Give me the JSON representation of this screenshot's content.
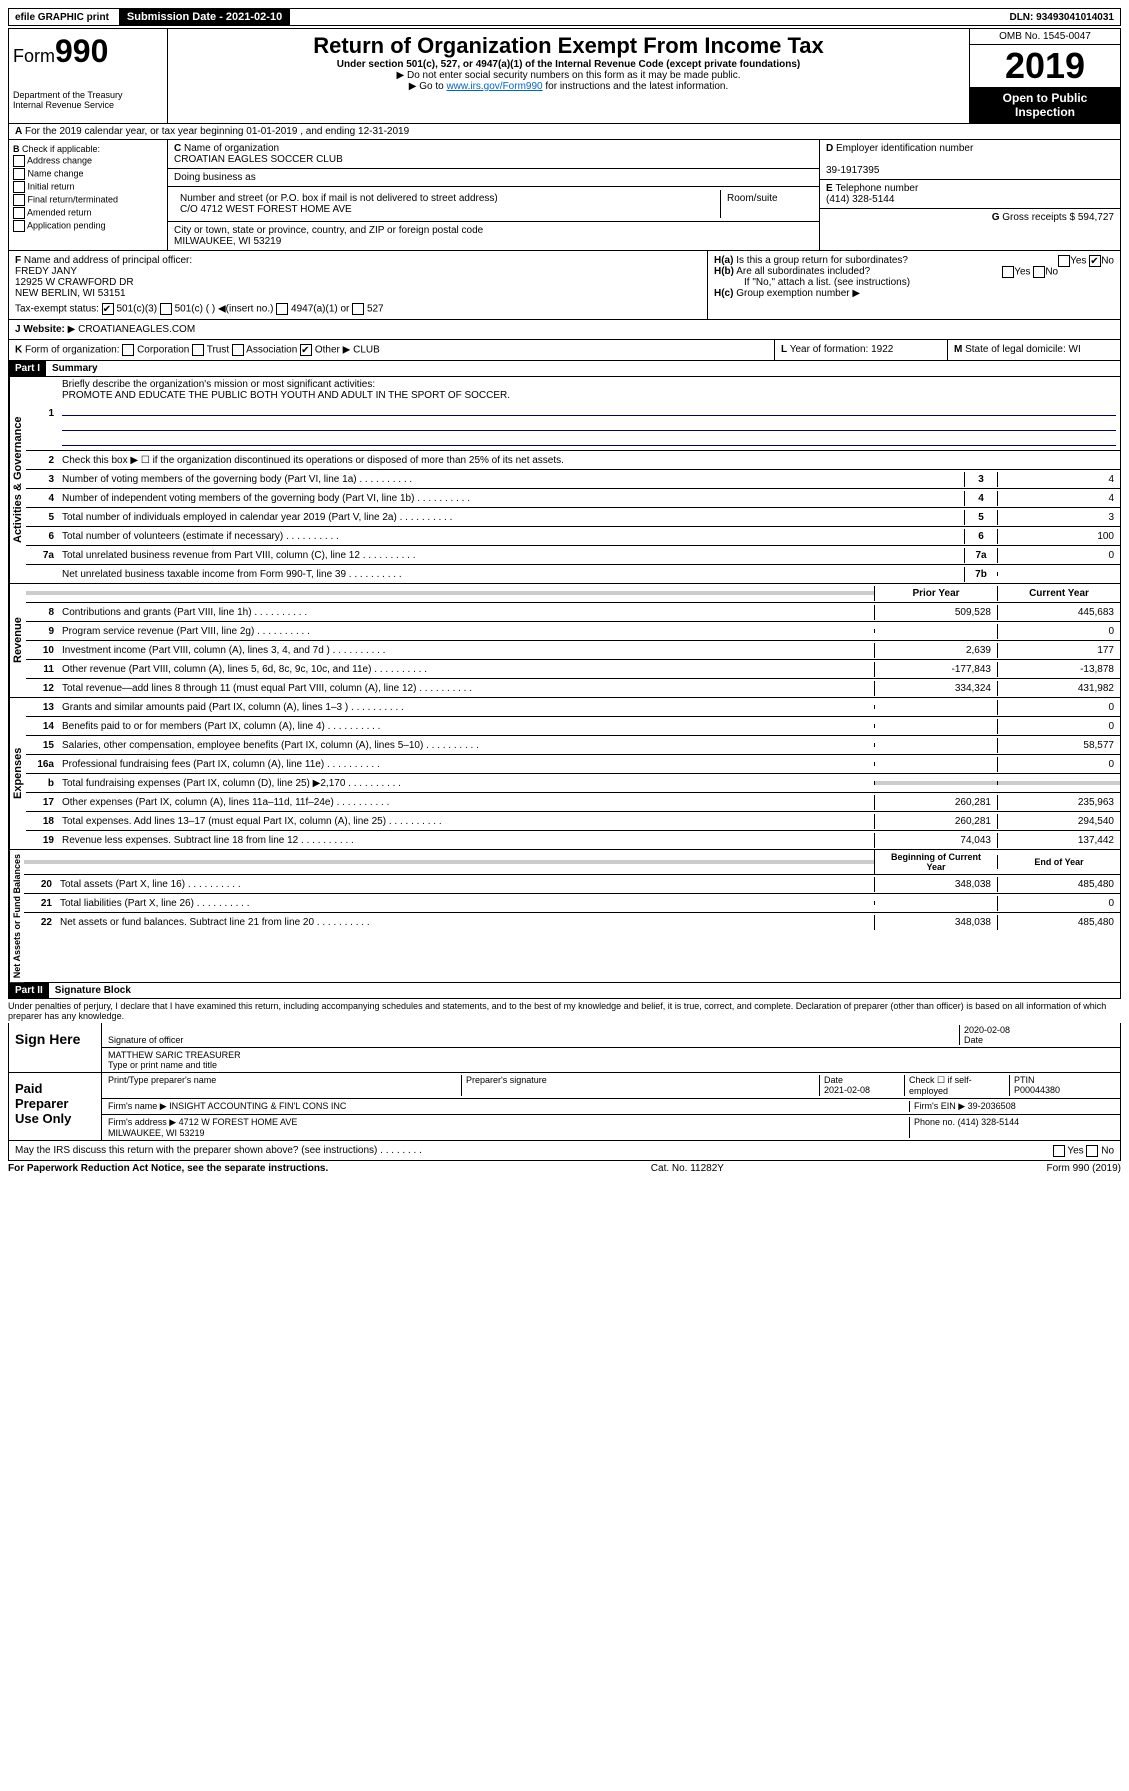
{
  "top": {
    "efile": "efile GRAPHIC print",
    "submission": "Submission Date - 2021-02-10",
    "dln": "DLN: 93493041014031"
  },
  "header": {
    "form_prefix": "Form",
    "form_number": "990",
    "dept": "Department of the Treasury\nInternal Revenue Service",
    "title": "Return of Organization Exempt From Income Tax",
    "subtitle": "Under section 501(c), 527, or 4947(a)(1) of the Internal Revenue Code (except private foundations)",
    "note1": "Do not enter social security numbers on this form as it may be made public.",
    "note2_pre": "Go to ",
    "note2_link": "www.irs.gov/Form990",
    "note2_post": " for instructions and the latest information.",
    "omb": "OMB No. 1545-0047",
    "year": "2019",
    "open": "Open to Public Inspection"
  },
  "a_line": {
    "text": "For the 2019 calendar year, or tax year beginning 01-01-2019  , and ending 12-31-2019"
  },
  "b": {
    "header": "Check if applicable:",
    "opts": [
      "Address change",
      "Name change",
      "Initial return",
      "Final return/terminated",
      "Amended return",
      "Application pending"
    ]
  },
  "c": {
    "label": "Name of organization",
    "name": "CROATIAN EAGLES SOCCER CLUB",
    "dba_label": "Doing business as",
    "addr_label": "Number and street (or P.O. box if mail is not delivered to street address)",
    "room_label": "Room/suite",
    "addr": "C/O 4712 WEST FOREST HOME AVE",
    "city_label": "City or town, state or province, country, and ZIP or foreign postal code",
    "city": "MILWAUKEE, WI  53219"
  },
  "d": {
    "label": "Employer identification number",
    "val": "39-1917395"
  },
  "e": {
    "label": "Telephone number",
    "val": "(414) 328-5144"
  },
  "g": {
    "label": "Gross receipts $",
    "val": "594,727"
  },
  "f": {
    "label": "Name and address of principal officer:",
    "name": "FREDY JANY",
    "addr1": "12925 W CRAWFORD DR",
    "addr2": "NEW BERLIN, WI  53151"
  },
  "h": {
    "a": "Is this a group return for subordinates?",
    "b": "Are all subordinates included?",
    "b_note": "If \"No,\" attach a list. (see instructions)",
    "c": "Group exemption number"
  },
  "tax_exempt": {
    "label": "Tax-exempt status:",
    "opt1": "501(c)(3)",
    "opt2": "501(c) (  ) ◀(insert no.)",
    "opt3": "4947(a)(1) or",
    "opt4": "527"
  },
  "j": {
    "label": "Website:",
    "val": "CROATIANEAGLES.COM"
  },
  "k": {
    "label": "Form of organization:",
    "opts": [
      "Corporation",
      "Trust",
      "Association",
      "Other"
    ],
    "other_val": "CLUB"
  },
  "l": {
    "label": "Year of formation:",
    "val": "1922"
  },
  "m": {
    "label": "State of legal domicile:",
    "val": "WI"
  },
  "partI": {
    "num": "Part I",
    "title": "Summary"
  },
  "gov": {
    "label": "Activities & Governance",
    "l1": "Briefly describe the organization's mission or most significant activities:",
    "l1_val": "PROMOTE AND EDUCATE THE PUBLIC BOTH YOUTH AND ADULT IN THE SPORT OF SOCCER.",
    "l2": "Check this box ▶ ☐ if the organization discontinued its operations or disposed of more than 25% of its net assets.",
    "rows": [
      {
        "n": "3",
        "t": "Number of voting members of the governing body (Part VI, line 1a)",
        "b": "3",
        "v": "4"
      },
      {
        "n": "4",
        "t": "Number of independent voting members of the governing body (Part VI, line 1b)",
        "b": "4",
        "v": "4"
      },
      {
        "n": "5",
        "t": "Total number of individuals employed in calendar year 2019 (Part V, line 2a)",
        "b": "5",
        "v": "3"
      },
      {
        "n": "6",
        "t": "Total number of volunteers (estimate if necessary)",
        "b": "6",
        "v": "100"
      },
      {
        "n": "7a",
        "t": "Total unrelated business revenue from Part VIII, column (C), line 12",
        "b": "7a",
        "v": "0"
      },
      {
        "n": "",
        "t": "Net unrelated business taxable income from Form 990-T, line 39",
        "b": "7b",
        "v": ""
      }
    ]
  },
  "rev": {
    "label": "Revenue",
    "h_prior": "Prior Year",
    "h_curr": "Current Year",
    "rows": [
      {
        "n": "8",
        "t": "Contributions and grants (Part VIII, line 1h)",
        "p": "509,528",
        "c": "445,683"
      },
      {
        "n": "9",
        "t": "Program service revenue (Part VIII, line 2g)",
        "p": "",
        "c": "0"
      },
      {
        "n": "10",
        "t": "Investment income (Part VIII, column (A), lines 3, 4, and 7d )",
        "p": "2,639",
        "c": "177"
      },
      {
        "n": "11",
        "t": "Other revenue (Part VIII, column (A), lines 5, 6d, 8c, 9c, 10c, and 11e)",
        "p": "-177,843",
        "c": "-13,878"
      },
      {
        "n": "12",
        "t": "Total revenue—add lines 8 through 11 (must equal Part VIII, column (A), line 12)",
        "p": "334,324",
        "c": "431,982"
      }
    ]
  },
  "exp": {
    "label": "Expenses",
    "rows": [
      {
        "n": "13",
        "t": "Grants and similar amounts paid (Part IX, column (A), lines 1–3 )",
        "p": "",
        "c": "0"
      },
      {
        "n": "14",
        "t": "Benefits paid to or for members (Part IX, column (A), line 4)",
        "p": "",
        "c": "0"
      },
      {
        "n": "15",
        "t": "Salaries, other compensation, employee benefits (Part IX, column (A), lines 5–10)",
        "p": "",
        "c": "58,577"
      },
      {
        "n": "16a",
        "t": "Professional fundraising fees (Part IX, column (A), line 11e)",
        "p": "",
        "c": "0"
      },
      {
        "n": "b",
        "t": "Total fundraising expenses (Part IX, column (D), line 25) ▶2,170",
        "p": "shaded",
        "c": "shaded"
      },
      {
        "n": "17",
        "t": "Other expenses (Part IX, column (A), lines 11a–11d, 11f–24e)",
        "p": "260,281",
        "c": "235,963"
      },
      {
        "n": "18",
        "t": "Total expenses. Add lines 13–17 (must equal Part IX, column (A), line 25)",
        "p": "260,281",
        "c": "294,540"
      },
      {
        "n": "19",
        "t": "Revenue less expenses. Subtract line 18 from line 12",
        "p": "74,043",
        "c": "137,442"
      }
    ]
  },
  "net": {
    "label": "Net Assets or Fund Balances",
    "h_beg": "Beginning of Current Year",
    "h_end": "End of Year",
    "rows": [
      {
        "n": "20",
        "t": "Total assets (Part X, line 16)",
        "p": "348,038",
        "c": "485,480"
      },
      {
        "n": "21",
        "t": "Total liabilities (Part X, line 26)",
        "p": "",
        "c": "0"
      },
      {
        "n": "22",
        "t": "Net assets or fund balances. Subtract line 21 from line 20",
        "p": "348,038",
        "c": "485,480"
      }
    ]
  },
  "partII": {
    "num": "Part II",
    "title": "Signature Block"
  },
  "sig": {
    "declaration": "Under penalties of perjury, I declare that I have examined this return, including accompanying schedules and statements, and to the best of my knowledge and belief, it is true, correct, and complete. Declaration of preparer (other than officer) is based on all information of which preparer has any knowledge.",
    "sign_here": "Sign Here",
    "sig_officer": "Signature of officer",
    "date": "2020-02-08",
    "date_label": "Date",
    "name_title": "MATTHEW SARIC  TREASURER",
    "name_label": "Type or print name and title",
    "paid": "Paid Preparer Use Only",
    "prep_name_label": "Print/Type preparer's name",
    "prep_sig_label": "Preparer's signature",
    "prep_date_label": "Date",
    "prep_date": "2021-02-08",
    "check_label": "Check ☐ if self-employed",
    "ptin_label": "PTIN",
    "ptin": "P00044380",
    "firm_name_label": "Firm's name   ▶",
    "firm_name": "INSIGHT ACCOUNTING & FIN'L CONS INC",
    "firm_ein_label": "Firm's EIN ▶",
    "firm_ein": "39-2036508",
    "firm_addr_label": "Firm's address ▶",
    "firm_addr": "4712 W FOREST HOME AVE\nMILWAUKEE, WI  53219",
    "phone_label": "Phone no.",
    "phone": "(414) 328-5144",
    "discuss": "May the IRS discuss this return with the preparer shown above? (see instructions)"
  },
  "footer": {
    "left": "For Paperwork Reduction Act Notice, see the separate instructions.",
    "mid": "Cat. No. 11282Y",
    "right": "Form 990 (2019)"
  }
}
